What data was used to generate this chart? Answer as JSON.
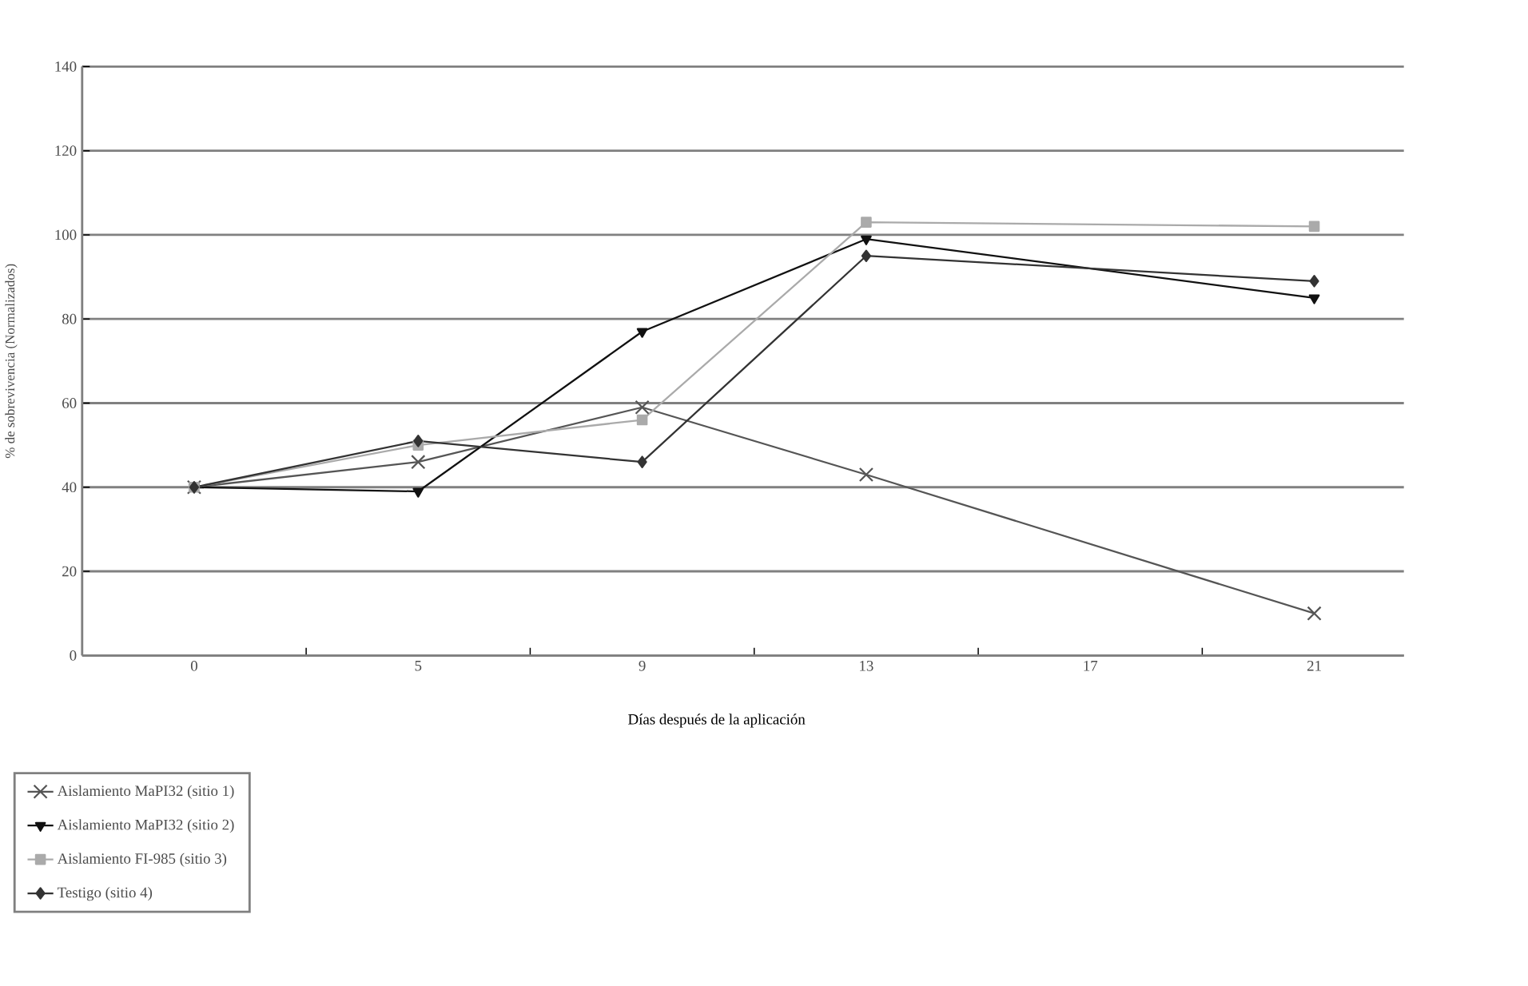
{
  "chart_data": {
    "type": "line",
    "xlabel": "Días después de la aplicación",
    "ylabel": "% de sobrevivencia (Normalizados)",
    "categories": [
      "0",
      "5",
      "9",
      "13",
      "17",
      "21"
    ],
    "ylim": [
      0,
      140
    ],
    "yticks": [
      0,
      20,
      40,
      60,
      80,
      100,
      120,
      140
    ],
    "grid": "y",
    "legend": "bottom left",
    "series": [
      {
        "name": "Aislamiento MaPI32 (sitio 1)",
        "color": "#555555",
        "marker": "cross",
        "values": [
          40,
          46,
          59,
          43,
          null,
          10
        ]
      },
      {
        "name": "Aislamiento MaPI32 (sitio 2)",
        "color": "#111111",
        "marker": "triangle",
        "values": [
          40,
          39,
          77,
          99,
          null,
          85
        ]
      },
      {
        "name": "Aislamiento FI-985 (sitio 3)",
        "color": "#aaaaaa",
        "marker": "square",
        "values": [
          40,
          50,
          56,
          103,
          null,
          102
        ]
      },
      {
        "name": "Testigo (sitio 4)",
        "color": "#333333",
        "marker": "diamond",
        "values": [
          40,
          51,
          46,
          95,
          null,
          89
        ]
      }
    ]
  }
}
